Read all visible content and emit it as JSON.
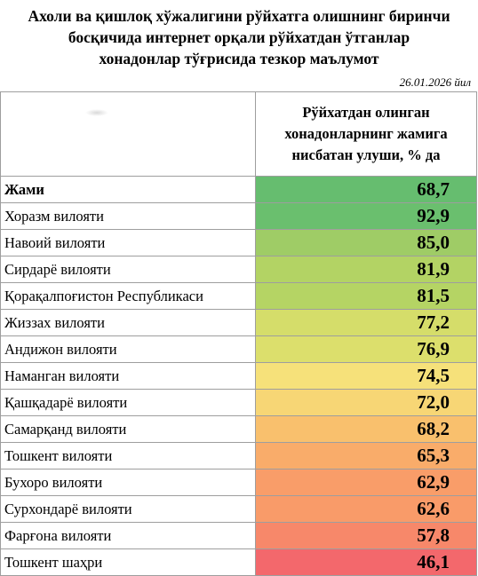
{
  "title": {
    "line1": "Ахоли ва қишлоқ хўжалигини рўйхатга олишнинг биринчи",
    "line2": "босқичида интернет орқали рўйхатдан  ўтганлар",
    "line3": "хонадонлар тўғрисида тезкор маълумот"
  },
  "date": "26.01.2026 йил",
  "table": {
    "header": {
      "line1": "Рўйхатдан олинган",
      "line2": "хонадонларнинг жамига",
      "line3": "нисбатан улуши, % да"
    },
    "rows": [
      {
        "region": "Жами",
        "value": "68,7",
        "color": "#66bd6f"
      },
      {
        "region": "Хоразм вилояти",
        "value": "92,9",
        "color": "#6abf6e"
      },
      {
        "region": "Навоий вилояти",
        "value": "85,0",
        "color": "#9fcc66"
      },
      {
        "region": "Сирдарё вилояти",
        "value": "81,9",
        "color": "#b3d364"
      },
      {
        "region": "Қорақалпоғистон Республикаси",
        "value": "81,5",
        "color": "#b5d464"
      },
      {
        "region": "Жиззах вилояти",
        "value": "77,2",
        "color": "#d5dd6a"
      },
      {
        "region": "Андижон вилояти",
        "value": "76,9",
        "color": "#dcdf6c"
      },
      {
        "region": "Наманган вилояти",
        "value": "74,5",
        "color": "#f6e17a"
      },
      {
        "region": "Қашқадарё вилояти",
        "value": "72,0",
        "color": "#f7d675"
      },
      {
        "region": "Самарқанд вилояти",
        "value": "68,2",
        "color": "#f9c06d"
      },
      {
        "region": "Тошкент вилояти",
        "value": "65,3",
        "color": "#f9ac6a"
      },
      {
        "region": "Бухоро вилояти",
        "value": "62,9",
        "color": "#f99d69"
      },
      {
        "region": "Сурхондарё вилояти",
        "value": "62,6",
        "color": "#f99b69"
      },
      {
        "region": "Фарғона вилояти",
        "value": "57,8",
        "color": "#f7886a"
      },
      {
        "region": "Тошкент шаҳри",
        "value": "46,1",
        "color": "#f3686c"
      }
    ]
  }
}
